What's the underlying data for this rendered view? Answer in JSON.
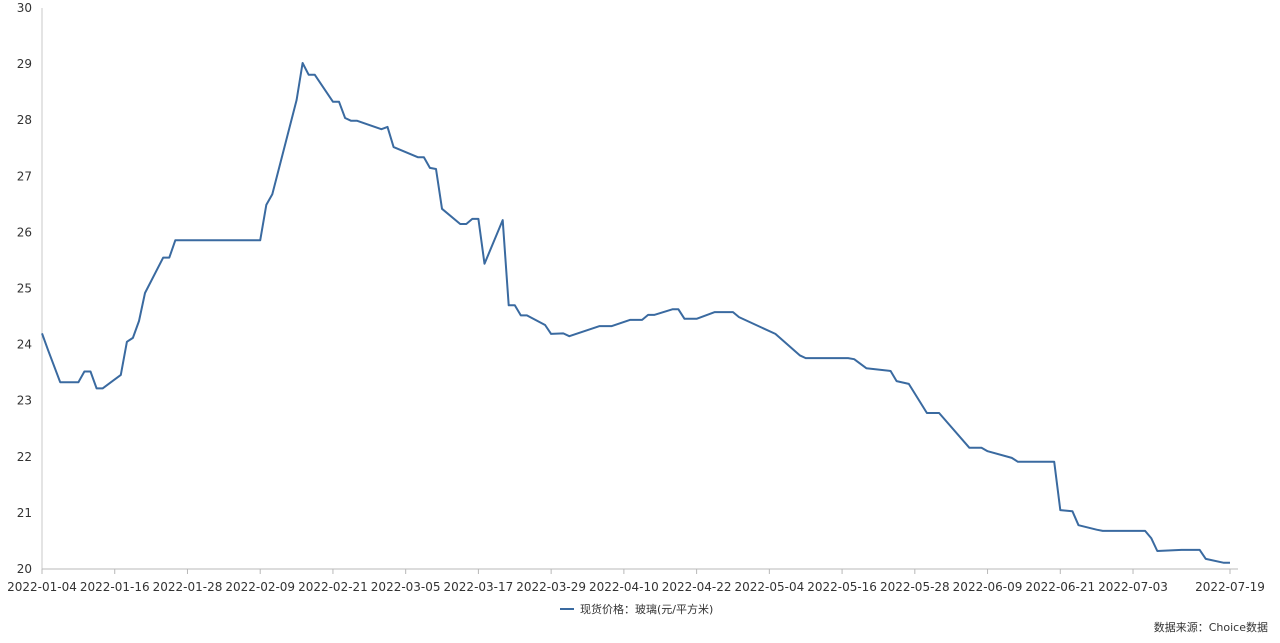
{
  "chart_data": {
    "type": "line",
    "title": "",
    "xlabel": "",
    "ylabel": "",
    "ylim": [
      20,
      30
    ],
    "yticks": [
      20,
      21,
      22,
      23,
      24,
      25,
      26,
      27,
      28,
      29,
      30
    ],
    "xlim": [
      "2022-01-04",
      "2022-07-19"
    ],
    "xticks": [
      "2022-01-04",
      "2022-01-16",
      "2022-01-28",
      "2022-02-09",
      "2022-02-21",
      "2022-03-05",
      "2022-03-17",
      "2022-03-29",
      "2022-04-10",
      "2022-04-22",
      "2022-05-04",
      "2022-05-16",
      "2022-05-28",
      "2022-06-09",
      "2022-06-21",
      "2022-07-03",
      "2022-07-19"
    ],
    "grid": false,
    "legend_position": "bottom",
    "series": [
      {
        "name": "现货价格：玻璃(元/平方米)",
        "color": "#3a6aa0",
        "x": [
          "2022-01-04",
          "2022-01-05",
          "2022-01-07",
          "2022-01-10",
          "2022-01-11",
          "2022-01-12",
          "2022-01-13",
          "2022-01-14",
          "2022-01-17",
          "2022-01-18",
          "2022-01-19",
          "2022-01-20",
          "2022-01-21",
          "2022-01-24",
          "2022-01-25",
          "2022-01-26",
          "2022-02-09",
          "2022-02-10",
          "2022-02-11",
          "2022-02-15",
          "2022-02-16",
          "2022-02-17",
          "2022-02-18",
          "2022-02-21",
          "2022-02-22",
          "2022-02-23",
          "2022-02-24",
          "2022-02-25",
          "2022-03-01",
          "2022-03-02",
          "2022-03-03",
          "2022-03-07",
          "2022-03-08",
          "2022-03-09",
          "2022-03-10",
          "2022-03-11",
          "2022-03-14",
          "2022-03-15",
          "2022-03-16",
          "2022-03-17",
          "2022-03-18",
          "2022-03-21",
          "2022-03-22",
          "2022-03-23",
          "2022-03-24",
          "2022-03-25",
          "2022-03-28",
          "2022-03-29",
          "2022-03-31",
          "2022-04-01",
          "2022-04-06",
          "2022-04-08",
          "2022-04-11",
          "2022-04-13",
          "2022-04-14",
          "2022-04-15",
          "2022-04-18",
          "2022-04-19",
          "2022-04-20",
          "2022-04-22",
          "2022-04-25",
          "2022-04-28",
          "2022-04-29",
          "2022-05-05",
          "2022-05-09",
          "2022-05-10",
          "2022-05-17",
          "2022-05-18",
          "2022-05-20",
          "2022-05-24",
          "2022-05-25",
          "2022-05-27",
          "2022-05-30",
          "2022-06-01",
          "2022-06-06",
          "2022-06-08",
          "2022-06-09",
          "2022-06-13",
          "2022-06-14",
          "2022-06-20",
          "2022-06-21",
          "2022-06-23",
          "2022-06-24",
          "2022-06-27",
          "2022-06-28",
          "2022-07-05",
          "2022-07-06",
          "2022-07-07",
          "2022-07-11",
          "2022-07-14",
          "2022-07-15",
          "2022-07-18",
          "2022-07-19"
        ],
        "values": [
          24.2,
          23.9,
          23.33,
          23.33,
          23.52,
          23.52,
          23.22,
          23.22,
          23.46,
          24.05,
          24.12,
          24.42,
          24.92,
          25.55,
          25.55,
          25.86,
          25.86,
          26.49,
          26.68,
          28.36,
          29.02,
          28.81,
          28.81,
          28.33,
          28.33,
          28.04,
          27.99,
          27.99,
          27.84,
          27.88,
          27.52,
          27.34,
          27.34,
          27.15,
          27.13,
          26.42,
          26.15,
          26.15,
          26.24,
          26.24,
          25.44,
          26.22,
          24.7,
          24.7,
          24.52,
          24.52,
          24.35,
          24.19,
          24.2,
          24.15,
          24.33,
          24.33,
          24.44,
          24.44,
          24.53,
          24.53,
          24.63,
          24.63,
          24.46,
          24.46,
          24.58,
          24.58,
          24.49,
          24.19,
          23.81,
          23.76,
          23.76,
          23.74,
          23.58,
          23.53,
          23.35,
          23.3,
          22.78,
          22.78,
          22.16,
          22.16,
          22.1,
          21.98,
          21.91,
          21.91,
          21.05,
          21.03,
          20.78,
          20.7,
          20.68,
          20.68,
          20.55,
          20.32,
          20.34,
          20.34,
          20.18,
          20.11,
          20.11
        ]
      }
    ]
  },
  "source": "数据来源：Choice数据"
}
